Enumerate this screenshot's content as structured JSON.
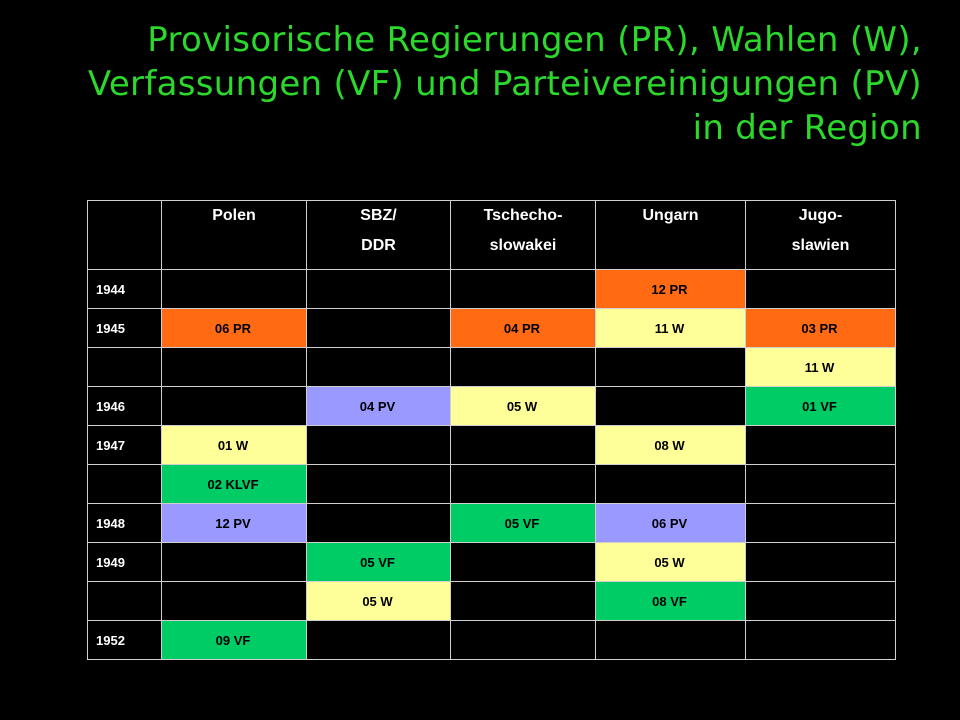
{
  "title": {
    "line1": "Provisorische Regierungen (PR), Wahlen (W),",
    "line2": "Verfassungen (VF) und Parteivereinigungen  (PV)",
    "line3": "in der Region"
  },
  "colors": {
    "title": "#2bd82b",
    "PR": "#ff6a13",
    "W": "#ffff99",
    "PV": "#9999ff",
    "VF": "#00cc66"
  },
  "table": {
    "headers": [
      {
        "line1": "",
        "line2": ""
      },
      {
        "line1": "Polen",
        "line2": ""
      },
      {
        "line1": "SBZ/",
        "line2": "DDR"
      },
      {
        "line1": "Tschecho-",
        "line2": "slowakei"
      },
      {
        "line1": "Ungarn",
        "line2": ""
      },
      {
        "line1": "Jugo-",
        "line2": "slawien"
      }
    ],
    "rows": [
      {
        "year": "1944",
        "cells": [
          null,
          null,
          null,
          {
            "text": "12 PR",
            "type": "PR"
          },
          null
        ]
      },
      {
        "year": "1945",
        "cells": [
          {
            "text": "06 PR",
            "type": "PR"
          },
          null,
          {
            "text": "04 PR",
            "type": "PR"
          },
          {
            "text": "11 W",
            "type": "W"
          },
          {
            "text": "03 PR",
            "type": "PR"
          }
        ]
      },
      {
        "year": "",
        "cells": [
          null,
          null,
          null,
          null,
          {
            "text": "11 W",
            "type": "W"
          }
        ]
      },
      {
        "year": "1946",
        "cells": [
          null,
          {
            "text": "04 PV",
            "type": "PV"
          },
          {
            "text": "05 W",
            "type": "W"
          },
          null,
          {
            "text": "01 VF",
            "type": "VF"
          }
        ]
      },
      {
        "year": "1947",
        "cells": [
          {
            "text": "01 W",
            "type": "W"
          },
          null,
          null,
          {
            "text": "08 W",
            "type": "W"
          },
          null
        ]
      },
      {
        "year": "",
        "cells": [
          {
            "text": "02 KLVF",
            "type": "VF"
          },
          null,
          null,
          null,
          null
        ]
      },
      {
        "year": "1948",
        "cells": [
          {
            "text": "12 PV",
            "type": "PV"
          },
          null,
          {
            "text": "05 VF",
            "type": "VF"
          },
          {
            "text": "06 PV",
            "type": "PV"
          },
          null
        ]
      },
      {
        "year": "1949",
        "cells": [
          null,
          {
            "text": "05 VF",
            "type": "VF"
          },
          null,
          {
            "text": "05 W",
            "type": "W"
          },
          null
        ]
      },
      {
        "year": "",
        "cells": [
          null,
          {
            "text": "05 W",
            "type": "W"
          },
          null,
          {
            "text": "08 VF",
            "type": "VF"
          },
          null
        ]
      },
      {
        "year": "1952",
        "cells": [
          {
            "text": "09 VF",
            "type": "VF"
          },
          null,
          null,
          null,
          null
        ]
      }
    ]
  }
}
